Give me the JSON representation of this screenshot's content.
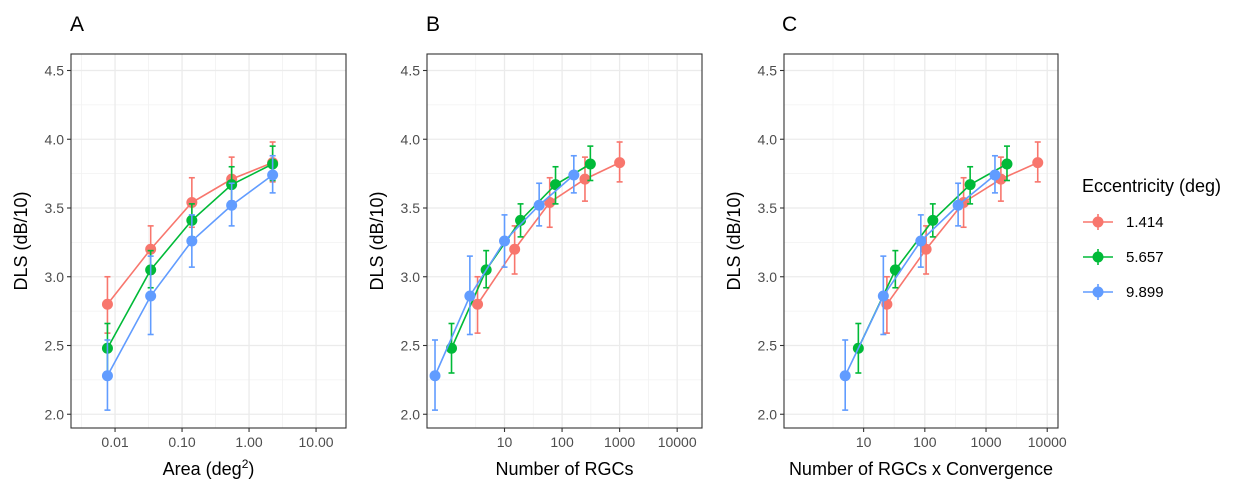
{
  "chart_data": [
    {
      "panel": "A",
      "type": "line",
      "xlabel": "Area (deg",
      "xlabel_superscript": "2",
      "xlabel_suffix": ")",
      "ylabel": "DLS (dB/10)",
      "xscale": "log",
      "xlim": [
        0.0022,
        28
      ],
      "ylim": [
        1.9,
        4.62
      ],
      "xticks": [
        0.01,
        0.1,
        1,
        10
      ],
      "xtick_labels": [
        "0.01",
        "0.10",
        "1.00",
        "10.00"
      ],
      "yticks": [
        2.0,
        2.5,
        3.0,
        3.5,
        4.0,
        4.5
      ],
      "ytick_labels": [
        "2.0",
        "2.5",
        "3.0",
        "3.5",
        "4.0",
        "4.5"
      ],
      "grid": true,
      "series": [
        {
          "name": "1.414",
          "color": "#F8766D",
          "points": [
            {
              "x": 0.0077,
              "y": 2.8,
              "lo": 2.59,
              "hi": 3.0
            },
            {
              "x": 0.034,
              "y": 3.2,
              "lo": 3.02,
              "hi": 3.37
            },
            {
              "x": 0.14,
              "y": 3.54,
              "lo": 3.36,
              "hi": 3.72
            },
            {
              "x": 0.55,
              "y": 3.71,
              "lo": 3.55,
              "hi": 3.87
            },
            {
              "x": 2.25,
              "y": 3.83,
              "lo": 3.69,
              "hi": 3.98
            }
          ]
        },
        {
          "name": "5.657",
          "color": "#00BA38",
          "points": [
            {
              "x": 0.0077,
              "y": 2.48,
              "lo": 2.3,
              "hi": 2.66
            },
            {
              "x": 0.034,
              "y": 3.05,
              "lo": 2.92,
              "hi": 3.19
            },
            {
              "x": 0.14,
              "y": 3.41,
              "lo": 3.29,
              "hi": 3.53
            },
            {
              "x": 0.55,
              "y": 3.67,
              "lo": 3.53,
              "hi": 3.8
            },
            {
              "x": 2.25,
              "y": 3.82,
              "lo": 3.7,
              "hi": 3.95
            }
          ]
        },
        {
          "name": "9.899",
          "color": "#619CFF",
          "points": [
            {
              "x": 0.0077,
              "y": 2.28,
              "lo": 2.03,
              "hi": 2.54
            },
            {
              "x": 0.034,
              "y": 2.86,
              "lo": 2.58,
              "hi": 3.15
            },
            {
              "x": 0.14,
              "y": 3.26,
              "lo": 3.07,
              "hi": 3.45
            },
            {
              "x": 0.55,
              "y": 3.52,
              "lo": 3.37,
              "hi": 3.68
            },
            {
              "x": 2.25,
              "y": 3.74,
              "lo": 3.61,
              "hi": 3.88
            }
          ]
        }
      ]
    },
    {
      "panel": "B",
      "type": "line",
      "xlabel": "Number of RGCs",
      "ylabel": "DLS (dB/10)",
      "xscale": "log",
      "xlim": [
        0.45,
        27000
      ],
      "ylim": [
        1.9,
        4.62
      ],
      "xticks": [
        10,
        100,
        1000,
        10000
      ],
      "xtick_labels": [
        "10",
        "100",
        "1000",
        "10000"
      ],
      "yticks": [
        2.0,
        2.5,
        3.0,
        3.5,
        4.0,
        4.5
      ],
      "ytick_labels": [
        "2.0",
        "2.5",
        "3.0",
        "3.5",
        "4.0",
        "4.5"
      ],
      "grid": true,
      "series": [
        {
          "name": "1.414",
          "color": "#F8766D",
          "points": [
            {
              "x": 3.4,
              "y": 2.8,
              "lo": 2.59,
              "hi": 3.0
            },
            {
              "x": 15,
              "y": 3.2,
              "lo": 3.02,
              "hi": 3.37
            },
            {
              "x": 61,
              "y": 3.54,
              "lo": 3.36,
              "hi": 3.72
            },
            {
              "x": 250,
              "y": 3.71,
              "lo": 3.55,
              "hi": 3.87
            },
            {
              "x": 1000,
              "y": 3.83,
              "lo": 3.69,
              "hi": 3.98
            }
          ]
        },
        {
          "name": "5.657",
          "color": "#00BA38",
          "points": [
            {
              "x": 1.2,
              "y": 2.48,
              "lo": 2.3,
              "hi": 2.66
            },
            {
              "x": 4.8,
              "y": 3.05,
              "lo": 2.92,
              "hi": 3.19
            },
            {
              "x": 19,
              "y": 3.41,
              "lo": 3.29,
              "hi": 3.53
            },
            {
              "x": 77,
              "y": 3.67,
              "lo": 3.53,
              "hi": 3.8
            },
            {
              "x": 310,
              "y": 3.82,
              "lo": 3.7,
              "hi": 3.95
            }
          ]
        },
        {
          "name": "9.899",
          "color": "#619CFF",
          "points": [
            {
              "x": 0.62,
              "y": 2.28,
              "lo": 2.03,
              "hi": 2.54
            },
            {
              "x": 2.5,
              "y": 2.86,
              "lo": 2.58,
              "hi": 3.15
            },
            {
              "x": 10,
              "y": 3.26,
              "lo": 3.07,
              "hi": 3.45
            },
            {
              "x": 40,
              "y": 3.52,
              "lo": 3.37,
              "hi": 3.68
            },
            {
              "x": 160,
              "y": 3.74,
              "lo": 3.61,
              "hi": 3.88
            }
          ]
        }
      ]
    },
    {
      "panel": "C",
      "type": "line",
      "xlabel": "Number of RGCs x Convergence",
      "ylabel": "DLS (dB/10)",
      "xscale": "log",
      "xlim": [
        0.5,
        15000
      ],
      "ylim": [
        1.9,
        4.62
      ],
      "xticks": [
        10,
        100,
        1000,
        10000
      ],
      "xtick_labels": [
        "10",
        "100",
        "1000",
        "10000"
      ],
      "yticks": [
        2.0,
        2.5,
        3.0,
        3.5,
        4.0,
        4.5
      ],
      "ytick_labels": [
        "2.0",
        "2.5",
        "3.0",
        "3.5",
        "4.0",
        "4.5"
      ],
      "grid": true,
      "series": [
        {
          "name": "1.414",
          "color": "#F8766D",
          "points": [
            {
              "x": 24,
              "y": 2.8,
              "lo": 2.59,
              "hi": 3.0
            },
            {
              "x": 105,
              "y": 3.2,
              "lo": 3.02,
              "hi": 3.37
            },
            {
              "x": 430,
              "y": 3.54,
              "lo": 3.36,
              "hi": 3.72
            },
            {
              "x": 1750,
              "y": 3.71,
              "lo": 3.55,
              "hi": 3.87
            },
            {
              "x": 7000,
              "y": 3.83,
              "lo": 3.69,
              "hi": 3.98
            }
          ]
        },
        {
          "name": "5.657",
          "color": "#00BA38",
          "points": [
            {
              "x": 8.2,
              "y": 2.48,
              "lo": 2.3,
              "hi": 2.66
            },
            {
              "x": 33,
              "y": 3.05,
              "lo": 2.92,
              "hi": 3.19
            },
            {
              "x": 135,
              "y": 3.41,
              "lo": 3.29,
              "hi": 3.53
            },
            {
              "x": 550,
              "y": 3.67,
              "lo": 3.53,
              "hi": 3.8
            },
            {
              "x": 2200,
              "y": 3.82,
              "lo": 3.7,
              "hi": 3.95
            }
          ]
        },
        {
          "name": "9.899",
          "color": "#619CFF",
          "points": [
            {
              "x": 5,
              "y": 2.28,
              "lo": 2.03,
              "hi": 2.54
            },
            {
              "x": 21,
              "y": 2.86,
              "lo": 2.58,
              "hi": 3.15
            },
            {
              "x": 86,
              "y": 3.26,
              "lo": 3.07,
              "hi": 3.45
            },
            {
              "x": 350,
              "y": 3.52,
              "lo": 3.37,
              "hi": 3.68
            },
            {
              "x": 1400,
              "y": 3.74,
              "lo": 3.61,
              "hi": 3.88
            }
          ]
        }
      ]
    }
  ],
  "legend": {
    "title": "Eccentricity (deg)",
    "placement": "right",
    "items": [
      {
        "label": "1.414",
        "color": "#F8766D"
      },
      {
        "label": "5.657",
        "color": "#00BA38"
      },
      {
        "label": "9.899",
        "color": "#619CFF"
      }
    ]
  }
}
